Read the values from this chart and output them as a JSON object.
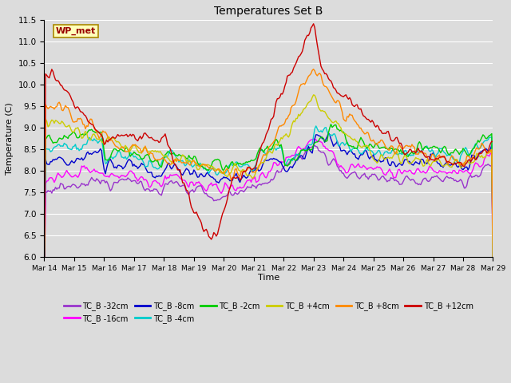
{
  "title": "Temperatures Set B",
  "xlabel": "Time",
  "ylabel": "Temperature (C)",
  "ylim": [
    6.0,
    11.5
  ],
  "xlim": [
    0,
    360
  ],
  "bg_color": "#dcdcdc",
  "series": [
    {
      "label": "TC_B -32cm",
      "color": "#9933cc"
    },
    {
      "label": "TC_B -16cm",
      "color": "#ff00ff"
    },
    {
      "label": "TC_B -8cm",
      "color": "#0000cc"
    },
    {
      "label": "TC_B -4cm",
      "color": "#00cccc"
    },
    {
      "label": "TC_B -2cm",
      "color": "#00cc00"
    },
    {
      "label": "TC_B +4cm",
      "color": "#cccc00"
    },
    {
      "label": "TC_B +8cm",
      "color": "#ff8800"
    },
    {
      "label": "TC_B +12cm",
      "color": "#cc0000"
    }
  ],
  "xtick_labels": [
    "Mar 14",
    "Mar 15",
    "Mar 16",
    "Mar 17",
    "Mar 18",
    "Mar 19",
    "Mar 20",
    "Mar 21",
    "Mar 22",
    "Mar 23",
    "Mar 24",
    "Mar 25",
    "Mar 26",
    "Mar 27",
    "Mar 28",
    "Mar 29"
  ],
  "xtick_positions": [
    0,
    24,
    48,
    72,
    96,
    120,
    144,
    168,
    192,
    216,
    240,
    264,
    288,
    312,
    336,
    360
  ],
  "ytick_positions": [
    6.0,
    6.5,
    7.0,
    7.5,
    8.0,
    8.5,
    9.0,
    9.5,
    10.0,
    10.5,
    11.0,
    11.5
  ],
  "wp_met_label": "WP_met",
  "wp_met_color": "#990000",
  "wp_met_bg": "#ffffbb",
  "wp_met_border": "#aa8800"
}
